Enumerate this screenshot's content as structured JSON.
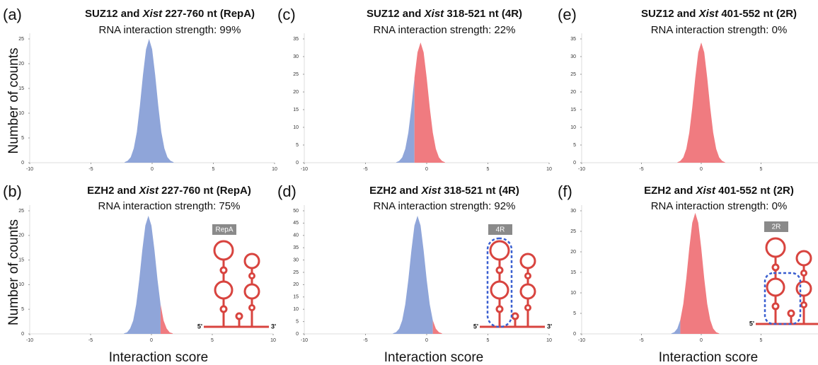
{
  "chart_data": [
    {
      "type": "area",
      "label": "(a)",
      "title_prefix": "SUZ12 and",
      "title_gene": "Xist",
      "title_suffix": "227-760 nt (RepA)",
      "subtitle": "RNA interaction strength: 99%",
      "ylabel": "Number of counts",
      "x": [
        -2.25,
        -2,
        -1.75,
        -1.5,
        -1.25,
        -1,
        -0.75,
        -0.5,
        -0.25,
        0,
        0.25,
        0.5,
        0.75,
        1,
        1.25,
        1.5,
        1.75
      ],
      "series": [
        {
          "color": "#8fa5d9",
          "values": [
            0.1,
            0.4,
            1.1,
            2.9,
            6.2,
            11.5,
            17.7,
            22.9,
            25,
            22.9,
            17.7,
            11.5,
            6.2,
            2.9,
            1.1,
            0.4,
            0.1
          ]
        }
      ],
      "xlim": [
        -10,
        10
      ],
      "xticks": [
        -10,
        -5,
        0,
        5,
        10
      ],
      "ylim": [
        0,
        25
      ],
      "yticks": [
        0,
        5,
        10,
        15,
        20,
        25
      ]
    },
    {
      "type": "area",
      "label": "(b)",
      "title_prefix": "EZH2 and",
      "title_gene": "Xist",
      "title_suffix": "227-760 nt (RepA)",
      "subtitle": "RNA interaction strength: 75%",
      "ylabel": "Number of counts",
      "xlabel": "Interaction score",
      "x": [
        -2.25,
        -2,
        -1.75,
        -1.5,
        -1.25,
        -1,
        -0.75,
        -0.5,
        -0.25,
        0,
        0.25,
        0.5,
        0.75,
        1,
        1.25,
        1.5,
        1.75
      ],
      "series": [
        {
          "color": "#8fa5d9",
          "values": [
            0.1,
            0.3,
            1.1,
            2.7,
            6.0,
            11.0,
            17.0,
            22.0,
            24,
            22.0,
            17.0,
            11.0,
            6.0,
            null,
            null,
            null,
            null
          ]
        },
        {
          "color": "#f07b80",
          "values": [
            null,
            null,
            null,
            null,
            null,
            null,
            null,
            null,
            null,
            null,
            null,
            null,
            6.0,
            2.7,
            1.1,
            0.3,
            0.1
          ]
        }
      ],
      "xlim": [
        -10,
        10
      ],
      "xticks": [
        -10,
        -5,
        0,
        5,
        10
      ],
      "ylim": [
        0,
        25
      ],
      "yticks": [
        0,
        5,
        10,
        15,
        20,
        25
      ],
      "diagram": {
        "label": "RepA",
        "five_prime": "5'",
        "three_prime": "3'"
      }
    },
    {
      "type": "area",
      "label": "(c)",
      "title_prefix": "SUZ12 and",
      "title_gene": "Xist",
      "title_suffix": "318-521 nt (4R)",
      "subtitle": "RNA interaction strength: 22%",
      "x": [
        -2.5,
        -2.25,
        -2,
        -1.75,
        -1.5,
        -1.25,
        -1,
        -0.75,
        -0.5,
        -0.25,
        0,
        0.25,
        0.5,
        0.75,
        1,
        1.25,
        1.5
      ],
      "series": [
        {
          "color": "#8fa5d9",
          "values": [
            0.1,
            0.5,
            1.5,
            3.9,
            8.5,
            15.6,
            24.0,
            null,
            null,
            null,
            null,
            null,
            null,
            null,
            null,
            null,
            null
          ]
        },
        {
          "color": "#f07b80",
          "values": [
            null,
            null,
            null,
            null,
            null,
            null,
            24.0,
            31.2,
            34,
            31.2,
            24.0,
            15.6,
            8.5,
            3.9,
            1.5,
            0.5,
            0.1
          ]
        }
      ],
      "xlim": [
        -10,
        10
      ],
      "xticks": [
        -10,
        -5,
        0,
        5,
        10
      ],
      "ylim": [
        0,
        35
      ],
      "yticks": [
        0,
        5,
        10,
        15,
        20,
        25,
        30,
        35
      ]
    },
    {
      "type": "area",
      "label": "(d)",
      "title_prefix": "EZH2 and",
      "title_gene": "Xist",
      "title_suffix": "318-521 nt (4R)",
      "subtitle": "RNA interaction strength: 92%",
      "xlabel": "Interaction score",
      "x": [
        -2.75,
        -2.5,
        -2.25,
        -2,
        -1.75,
        -1.5,
        -1.25,
        -1,
        -0.75,
        -0.5,
        -0.25,
        0,
        0.25,
        0.5,
        0.75,
        1,
        1.25
      ],
      "series": [
        {
          "color": "#8fa5d9",
          "values": [
            0.2,
            0.7,
            2.1,
            5.5,
            12.0,
            22.0,
            33.9,
            44.0,
            48,
            44.0,
            33.9,
            22.0,
            12.0,
            5.5,
            null,
            null,
            null
          ]
        },
        {
          "color": "#f07b80",
          "values": [
            null,
            null,
            null,
            null,
            null,
            null,
            null,
            null,
            null,
            null,
            null,
            null,
            null,
            5.5,
            2.1,
            0.7,
            0.2
          ]
        }
      ],
      "xlim": [
        -10,
        10
      ],
      "xticks": [
        -10,
        -5,
        0,
        5,
        10
      ],
      "ylim": [
        0,
        50
      ],
      "yticks": [
        0,
        5,
        10,
        15,
        20,
        25,
        30,
        35,
        40,
        45,
        50
      ],
      "diagram": {
        "label": "4R",
        "five_prime": "5'",
        "three_prime": "3'"
      }
    },
    {
      "type": "area",
      "label": "(e)",
      "title_prefix": "SUZ12 and",
      "title_gene": "Xist",
      "title_suffix": "401-552 nt (2R)",
      "subtitle": "RNA interaction strength: 0%",
      "x": [
        -2,
        -1.75,
        -1.5,
        -1.25,
        -1,
        -0.75,
        -0.5,
        -0.25,
        0,
        0.25,
        0.5,
        0.75,
        1,
        1.25,
        1.5,
        1.75,
        2
      ],
      "series": [
        {
          "color": "#f07b80",
          "values": [
            0.1,
            0.5,
            1.5,
            3.9,
            8.5,
            15.6,
            24.0,
            31.2,
            34,
            31.2,
            24.0,
            15.6,
            8.5,
            3.9,
            1.5,
            0.5,
            0.1
          ]
        }
      ],
      "xlim": [
        -10,
        10
      ],
      "xticks": [
        -10,
        -5,
        0,
        5
      ],
      "ylim": [
        0,
        35
      ],
      "yticks": [
        0,
        5,
        10,
        15,
        20,
        25,
        30,
        35
      ]
    },
    {
      "type": "area",
      "label": "(f)",
      "title_prefix": "EZH2 and",
      "title_gene": "Xist",
      "title_suffix": "401-552 nt (2R)",
      "subtitle": "RNA interaction strength: 0%",
      "xlabel": "Interaction score",
      "x": [
        -2.5,
        -2.25,
        -2,
        -1.75,
        -1.5,
        -1.25,
        -1,
        -0.75,
        -0.5,
        -0.25,
        0,
        0.25,
        0.5,
        0.75,
        1,
        1.25,
        1.5
      ],
      "series": [
        {
          "color": "#8fa5d9",
          "values": [
            0.1,
            0.4,
            1.3,
            3.4,
            null,
            null,
            null,
            null,
            null,
            null,
            null,
            null,
            null,
            null,
            null,
            null,
            null
          ]
        },
        {
          "color": "#f07b80",
          "values": [
            null,
            null,
            null,
            3.4,
            7.3,
            13.5,
            20.9,
            27.1,
            29.5,
            27.1,
            20.9,
            13.5,
            7.3,
            3.4,
            1.3,
            0.4,
            0.1
          ]
        }
      ],
      "xlim": [
        -10,
        10
      ],
      "xticks": [
        -10,
        -5,
        0,
        5
      ],
      "ylim": [
        0,
        30
      ],
      "yticks": [
        0,
        5,
        10,
        15,
        20,
        25,
        30
      ],
      "diagram": {
        "label": "2R",
        "five_prime": "5'"
      }
    }
  ]
}
